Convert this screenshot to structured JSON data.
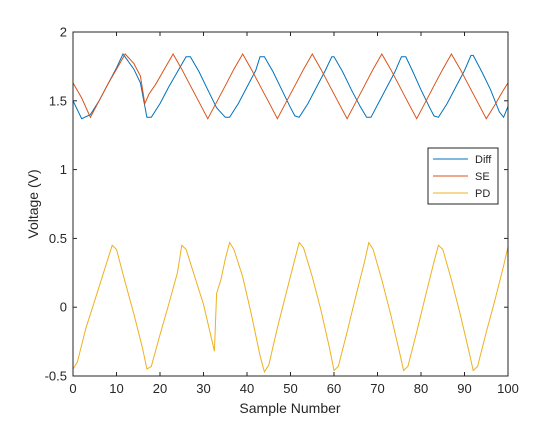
{
  "chart_data": {
    "type": "line",
    "xlabel": "Sample Number",
    "ylabel": "Voltage (V)",
    "xlim": [
      0,
      100
    ],
    "ylim": [
      -0.5,
      2
    ],
    "xticks": [
      0,
      10,
      20,
      30,
      40,
      50,
      60,
      70,
      80,
      90,
      100
    ],
    "yticks": [
      -0.5,
      0,
      0.5,
      1,
      1.5,
      2
    ],
    "ytick_labels": [
      "-0.5",
      "0",
      "0.5",
      "1",
      "1.5",
      "2"
    ],
    "grid": false,
    "legend_position": "right-middle",
    "series": [
      {
        "name": "Diff",
        "color": "#0072bd",
        "points": [
          [
            0,
            1.5
          ],
          [
            2,
            1.37
          ],
          [
            4,
            1.4
          ],
          [
            6,
            1.5
          ],
          [
            8,
            1.62
          ],
          [
            10,
            1.74
          ],
          [
            11.5,
            1.84
          ],
          [
            14,
            1.73
          ],
          [
            15.5,
            1.63
          ],
          [
            17,
            1.38
          ],
          [
            18,
            1.38
          ],
          [
            20,
            1.48
          ],
          [
            22,
            1.6
          ],
          [
            24,
            1.71
          ],
          [
            26,
            1.82
          ],
          [
            27,
            1.82
          ],
          [
            29,
            1.71
          ],
          [
            31,
            1.58
          ],
          [
            33,
            1.45
          ],
          [
            35,
            1.38
          ],
          [
            36,
            1.38
          ],
          [
            38,
            1.48
          ],
          [
            40,
            1.6
          ],
          [
            42,
            1.72
          ],
          [
            43,
            1.82
          ],
          [
            44,
            1.82
          ],
          [
            46,
            1.71
          ],
          [
            48,
            1.58
          ],
          [
            50,
            1.45
          ],
          [
            51,
            1.39
          ],
          [
            52,
            1.38
          ],
          [
            54,
            1.48
          ],
          [
            56,
            1.6
          ],
          [
            58,
            1.72
          ],
          [
            59.5,
            1.82
          ],
          [
            60,
            1.82
          ],
          [
            62,
            1.71
          ],
          [
            64,
            1.58
          ],
          [
            66,
            1.46
          ],
          [
            67.5,
            1.38
          ],
          [
            68.5,
            1.38
          ],
          [
            70,
            1.47
          ],
          [
            72,
            1.59
          ],
          [
            74,
            1.71
          ],
          [
            75.5,
            1.82
          ],
          [
            76.5,
            1.82
          ],
          [
            78,
            1.72
          ],
          [
            80,
            1.58
          ],
          [
            82,
            1.45
          ],
          [
            83,
            1.39
          ],
          [
            84,
            1.38
          ],
          [
            86,
            1.48
          ],
          [
            88,
            1.6
          ],
          [
            90,
            1.72
          ],
          [
            91.5,
            1.83
          ],
          [
            92,
            1.83
          ],
          [
            94,
            1.71
          ],
          [
            96,
            1.58
          ],
          [
            98,
            1.42
          ],
          [
            99,
            1.38
          ],
          [
            100,
            1.46
          ]
        ]
      },
      {
        "name": "SE",
        "color": "#d95319",
        "points": [
          [
            0,
            1.63
          ],
          [
            2,
            1.52
          ],
          [
            4,
            1.38
          ],
          [
            6,
            1.5
          ],
          [
            8,
            1.62
          ],
          [
            10,
            1.73
          ],
          [
            12,
            1.84
          ],
          [
            14,
            1.77
          ],
          [
            15.5,
            1.68
          ],
          [
            16.5,
            1.48
          ],
          [
            17.5,
            1.55
          ],
          [
            19,
            1.62
          ],
          [
            21,
            1.73
          ],
          [
            23,
            1.84
          ],
          [
            25,
            1.73
          ],
          [
            27,
            1.61
          ],
          [
            29,
            1.49
          ],
          [
            31,
            1.37
          ],
          [
            33,
            1.49
          ],
          [
            35,
            1.61
          ],
          [
            37,
            1.73
          ],
          [
            39,
            1.84
          ],
          [
            41,
            1.73
          ],
          [
            43,
            1.61
          ],
          [
            45,
            1.49
          ],
          [
            47,
            1.37
          ],
          [
            49,
            1.49
          ],
          [
            51,
            1.61
          ],
          [
            53,
            1.73
          ],
          [
            55,
            1.84
          ],
          [
            57,
            1.73
          ],
          [
            59,
            1.61
          ],
          [
            61,
            1.49
          ],
          [
            63,
            1.37
          ],
          [
            65,
            1.49
          ],
          [
            67,
            1.61
          ],
          [
            69,
            1.73
          ],
          [
            71,
            1.84
          ],
          [
            73,
            1.73
          ],
          [
            75,
            1.61
          ],
          [
            77,
            1.49
          ],
          [
            79,
            1.37
          ],
          [
            81,
            1.49
          ],
          [
            83,
            1.61
          ],
          [
            85,
            1.73
          ],
          [
            87,
            1.84
          ],
          [
            89,
            1.73
          ],
          [
            91,
            1.61
          ],
          [
            93,
            1.49
          ],
          [
            95,
            1.37
          ],
          [
            97,
            1.47
          ],
          [
            99,
            1.58
          ],
          [
            100,
            1.63
          ]
        ]
      },
      {
        "name": "PD",
        "color": "#edb120",
        "points": [
          [
            0,
            -0.45
          ],
          [
            1,
            -0.4
          ],
          [
            3,
            -0.15
          ],
          [
            5,
            0.05
          ],
          [
            7,
            0.25
          ],
          [
            9,
            0.45
          ],
          [
            10,
            0.42
          ],
          [
            12,
            0.18
          ],
          [
            14,
            -0.05
          ],
          [
            16,
            -0.3
          ],
          [
            17,
            -0.45
          ],
          [
            18,
            -0.43
          ],
          [
            20,
            -0.2
          ],
          [
            22,
            0.02
          ],
          [
            24,
            0.25
          ],
          [
            25,
            0.45
          ],
          [
            26,
            0.42
          ],
          [
            28,
            0.22
          ],
          [
            30,
            0.02
          ],
          [
            32,
            -0.25
          ],
          [
            32.5,
            -0.32
          ],
          [
            33,
            0.1
          ],
          [
            34,
            0.2
          ],
          [
            35,
            0.35
          ],
          [
            36,
            0.47
          ],
          [
            37,
            0.42
          ],
          [
            39,
            0.22
          ],
          [
            41,
            -0.05
          ],
          [
            43,
            -0.35
          ],
          [
            44,
            -0.47
          ],
          [
            45,
            -0.42
          ],
          [
            47,
            -0.15
          ],
          [
            49,
            0.1
          ],
          [
            51,
            0.35
          ],
          [
            52,
            0.47
          ],
          [
            53,
            0.43
          ],
          [
            55,
            0.22
          ],
          [
            57,
            -0.02
          ],
          [
            59,
            -0.3
          ],
          [
            60,
            -0.46
          ],
          [
            61,
            -0.43
          ],
          [
            63,
            -0.18
          ],
          [
            65,
            0.08
          ],
          [
            67,
            0.33
          ],
          [
            68,
            0.47
          ],
          [
            69,
            0.42
          ],
          [
            71,
            0.2
          ],
          [
            73,
            -0.05
          ],
          [
            75,
            -0.32
          ],
          [
            76,
            -0.46
          ],
          [
            77,
            -0.43
          ],
          [
            79,
            -0.18
          ],
          [
            81,
            0.08
          ],
          [
            83,
            0.33
          ],
          [
            84,
            0.45
          ],
          [
            85,
            0.42
          ],
          [
            87,
            0.2
          ],
          [
            89,
            -0.05
          ],
          [
            91,
            -0.32
          ],
          [
            92,
            -0.46
          ],
          [
            93,
            -0.43
          ],
          [
            95,
            -0.18
          ],
          [
            97,
            0.05
          ],
          [
            99,
            0.3
          ],
          [
            100,
            0.44
          ]
        ]
      }
    ]
  }
}
